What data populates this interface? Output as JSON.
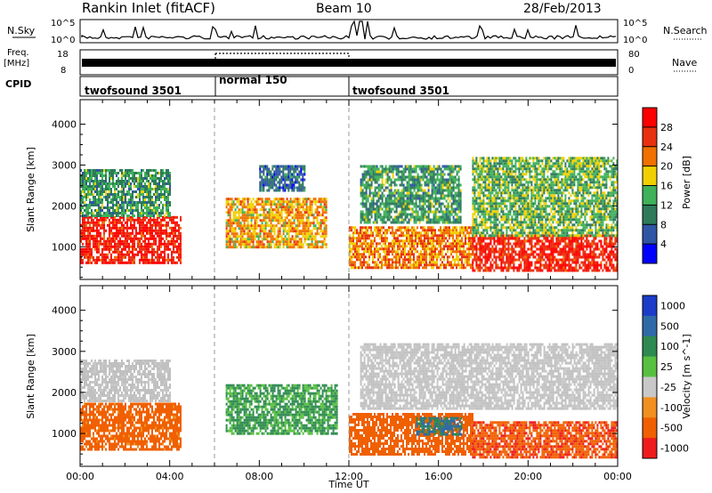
{
  "header": {
    "station": "Rankin Inlet (fitACF)",
    "beam": "Beam 10",
    "date": "28/Feb/2013"
  },
  "summary": {
    "nsky_label": "N.Sky",
    "nsky_ticks": [
      "10^5",
      "10^0"
    ],
    "freq_label": "Freq.",
    "freq_unit": "[MHz]",
    "freq_ticks": [
      "18",
      "8"
    ],
    "nsearch_label": "N.Search",
    "nsearch_ticks": [
      "10^5",
      "10^0"
    ],
    "nave_label": "Nave",
    "nave_ticks": [
      "80",
      "0"
    ],
    "cpid_label": "CPID",
    "cpid_segments": [
      {
        "name": "twofsound 3501",
        "start_hr": 0,
        "end_hr": 6
      },
      {
        "name": "normal 150",
        "start_hr": 6,
        "end_hr": 12
      },
      {
        "name": "twofsound 3501",
        "start_hr": 12,
        "end_hr": 24
      }
    ]
  },
  "colors": {
    "power_scale": [
      "#0000ff",
      "#2f55a5",
      "#2e7a5a",
      "#3fb15a",
      "#f0d000",
      "#f07000",
      "#e83010",
      "#ff0000"
    ],
    "velocity_scale": [
      "#1a3cc8",
      "#2f6aa8",
      "#2e8a50",
      "#58c040",
      "#c8c8c8",
      "#f09020",
      "#f06000",
      "#ee1c1c"
    ],
    "ground_scatter": "#c0c0c0"
  },
  "chart_data": [
    {
      "type": "heatmap",
      "name": "power",
      "xlabel": "",
      "ylabel": "Slant Range [km]",
      "xlim": [
        0,
        24
      ],
      "ylim": [
        200,
        4600
      ],
      "x_ticks": [
        "00:00",
        "04:00",
        "08:00",
        "12:00",
        "16:00",
        "20:00",
        "00:00"
      ],
      "y_ticks": [
        1000,
        2000,
        3000,
        4000
      ],
      "colorbar_label": "Power [dB]",
      "colorbar_ticks": [
        4,
        8,
        12,
        16,
        20,
        24,
        28
      ],
      "colorbar_range": [
        0,
        32
      ],
      "regions": [
        {
          "t0": 0.0,
          "t1": 4.5,
          "r0": 600,
          "r1": 1750,
          "level": 28
        },
        {
          "t0": 0.0,
          "t1": 4.0,
          "r0": 1750,
          "r1": 2900,
          "level": 12
        },
        {
          "t0": 6.5,
          "t1": 11.0,
          "r0": 1000,
          "r1": 2200,
          "level": 20
        },
        {
          "t0": 8.0,
          "t1": 10.0,
          "r0": 2400,
          "r1": 3000,
          "level": 8
        },
        {
          "t0": 12.0,
          "t1": 17.5,
          "r0": 500,
          "r1": 1500,
          "level": 22
        },
        {
          "t0": 12.5,
          "t1": 17.0,
          "r0": 1600,
          "r1": 3000,
          "level": 12
        },
        {
          "t0": 17.5,
          "t1": 24.0,
          "r0": 400,
          "r1": 1300,
          "level": 28
        },
        {
          "t0": 17.5,
          "t1": 24.0,
          "r0": 1300,
          "r1": 3200,
          "level": 14
        }
      ]
    },
    {
      "type": "heatmap",
      "name": "velocity",
      "xlabel": "Time UT",
      "ylabel": "Slant Range [km]",
      "xlim": [
        0,
        24
      ],
      "ylim": [
        200,
        4600
      ],
      "x_ticks": [
        "00:00",
        "04:00",
        "08:00",
        "12:00",
        "16:00",
        "20:00",
        "00:00"
      ],
      "y_ticks": [
        1000,
        2000,
        3000,
        4000
      ],
      "colorbar_label": "Velocity [m s^-1]",
      "colorbar_ticks": [
        "1000",
        "500",
        "100",
        "25",
        "-25",
        "-100",
        "-500",
        "-1000"
      ],
      "regions": [
        {
          "t0": 0.0,
          "t1": 4.5,
          "r0": 600,
          "r1": 1750,
          "value": -200
        },
        {
          "t0": 0.0,
          "t1": 4.0,
          "r0": 1800,
          "r1": 2800,
          "value": 0
        },
        {
          "t0": 6.5,
          "t1": 11.5,
          "r0": 1000,
          "r1": 2200,
          "value": 120
        },
        {
          "t0": 12.0,
          "t1": 17.5,
          "r0": 500,
          "r1": 1500,
          "value": -300
        },
        {
          "t0": 15.0,
          "t1": 17.0,
          "r0": 1000,
          "r1": 1400,
          "value": 500
        },
        {
          "t0": 12.5,
          "t1": 24.0,
          "r0": 1600,
          "r1": 3200,
          "value": 0
        },
        {
          "t0": 17.5,
          "t1": 24.0,
          "r0": 400,
          "r1": 1300,
          "value": -400
        }
      ]
    }
  ]
}
